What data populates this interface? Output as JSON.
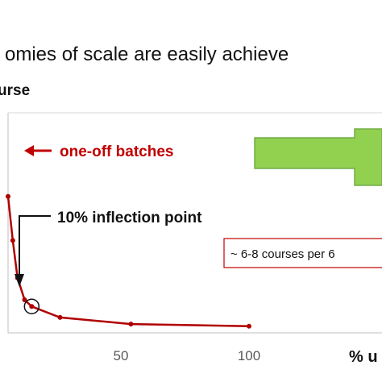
{
  "chart_data": {
    "type": "line",
    "title": "omies of scale are easily achieve",
    "ylabel": "urse",
    "xlabel": "% u",
    "x_ticks": [
      "50",
      "100"
    ],
    "xlim": [
      -2,
      100
    ],
    "ylim": [
      0,
      1
    ],
    "grid": false,
    "series": [
      {
        "color": "#b00000",
        "points": [
          {
            "x": -2,
            "y": 0.62
          },
          {
            "x": 0,
            "y": 0.42
          },
          {
            "x": 2,
            "y": 0.25
          },
          {
            "x": 5,
            "y": 0.15
          },
          {
            "x": 8,
            "y": 0.12
          },
          {
            "x": 20,
            "y": 0.07
          },
          {
            "x": 50,
            "y": 0.04
          },
          {
            "x": 100,
            "y": 0.03
          }
        ]
      }
    ],
    "highlight_point": {
      "x": 8,
      "y": 0.12
    },
    "annotations": {
      "batches": "one-off batches",
      "inflection": "10% inflection point",
      "courses": "~ 6-8 courses per 6"
    },
    "colors": {
      "line": "#b00000",
      "red_text": "#c00000",
      "arrow_fill": "#92d050",
      "arrow_stroke": "#70ad47",
      "axis": "#bfbfbf",
      "box_border": "#c00000"
    }
  }
}
